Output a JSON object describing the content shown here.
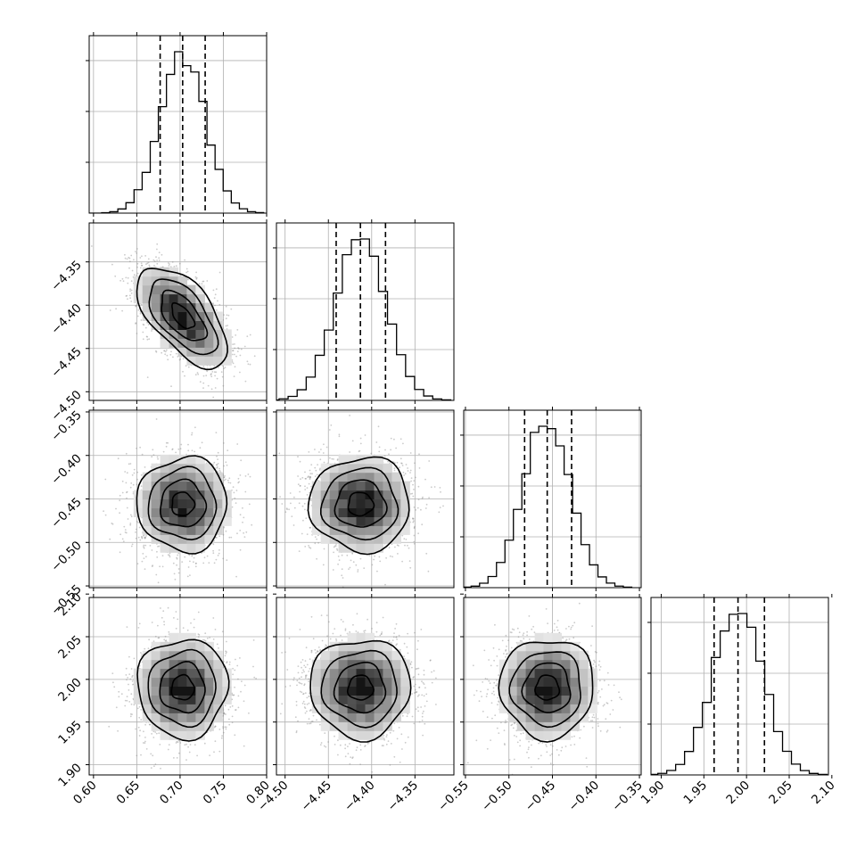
{
  "chart_data": {
    "type": "corner",
    "parameters": [
      {
        "range": [
          0.595,
          0.8
        ],
        "ticks": [
          0.6,
          0.65,
          0.7,
          0.75,
          0.8
        ],
        "tick_labels": [
          "0.60",
          "0.65",
          "0.70",
          "0.75",
          "0.80"
        ],
        "quantiles": [
          0.677,
          0.703,
          0.729
        ]
      },
      {
        "range": [
          -4.51,
          -4.305
        ],
        "ticks": [
          -4.5,
          -4.45,
          -4.4,
          -4.35
        ],
        "tick_labels": [
          "−4.50",
          "−4.45",
          "−4.40",
          "−4.35"
        ],
        "quantiles": [
          -4.441,
          -4.413,
          -4.384
        ]
      },
      {
        "range": [
          -0.552,
          -0.348
        ],
        "ticks": [
          -0.55,
          -0.5,
          -0.45,
          -0.4,
          -0.35
        ],
        "tick_labels": [
          "−0.55",
          "−0.50",
          "−0.45",
          "−0.40",
          "−0.35"
        ],
        "quantiles": [
          -0.482,
          -0.456,
          -0.428
        ]
      },
      {
        "range": [
          1.888,
          2.096
        ],
        "ticks": [
          1.9,
          1.95,
          2.0,
          2.05,
          2.1
        ],
        "tick_labels": [
          "1.90",
          "1.95",
          "2.00",
          "2.05",
          "2.10"
        ],
        "quantiles": [
          1.962,
          1.99,
          2.021
        ]
      }
    ],
    "means": [
      0.703,
      -4.413,
      -0.456,
      1.99
    ],
    "sigmas": [
      0.026,
      0.029,
      0.027,
      0.029
    ],
    "correlations": [
      [
        1,
        -0.6,
        0,
        0
      ],
      [
        -0.6,
        1,
        0,
        0
      ],
      [
        0,
        0,
        1,
        0
      ],
      [
        0,
        0,
        0,
        1
      ]
    ],
    "hist_bins": 20,
    "contour_levels_sigma": [
      0.5,
      1.0,
      1.5,
      2.0
    ],
    "grid": true,
    "colors": {
      "line": "#000000",
      "grid": "#b0b0b0",
      "points": "#8c8c8c"
    }
  }
}
